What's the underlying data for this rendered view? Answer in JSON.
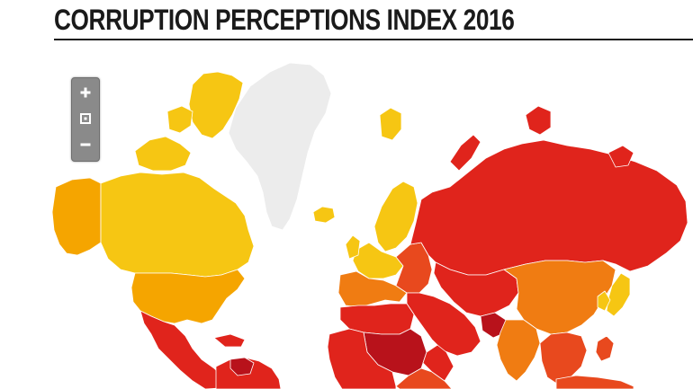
{
  "title": "CORRUPTION PERCEPTIONS INDEX 2016",
  "zoom": {
    "zoom_in_icon": "plus-icon",
    "reset_icon": "reset-view-icon",
    "zoom_out_icon": "minus-icon"
  },
  "colors": {
    "very_clean": "#f6c613",
    "clean": "#f5a500",
    "moderate": "#f07c12",
    "high": "#e8491e",
    "very_high": "#e0241c",
    "extreme": "#b8121b",
    "no_data": "#ececec",
    "border": "#ffffff"
  },
  "regions": {
    "alaska": "clean",
    "canada": "very_clean",
    "usa": "clean",
    "mexico_central_america": "very_high",
    "south_america_north": "very_high",
    "greenland": "no_data",
    "iceland": "very_clean",
    "scandinavia": "very_clean",
    "western_europe": "very_clean",
    "southern_europe": "moderate",
    "eastern_europe": "high",
    "russia": "very_high",
    "north_africa": "very_high",
    "sahel": "extreme",
    "west_africa": "very_high",
    "east_africa": "high",
    "middle_east": "very_high",
    "central_asia": "very_high",
    "china": "moderate",
    "south_asia": "moderate",
    "southeast_asia": "high",
    "japan": "very_clean"
  }
}
